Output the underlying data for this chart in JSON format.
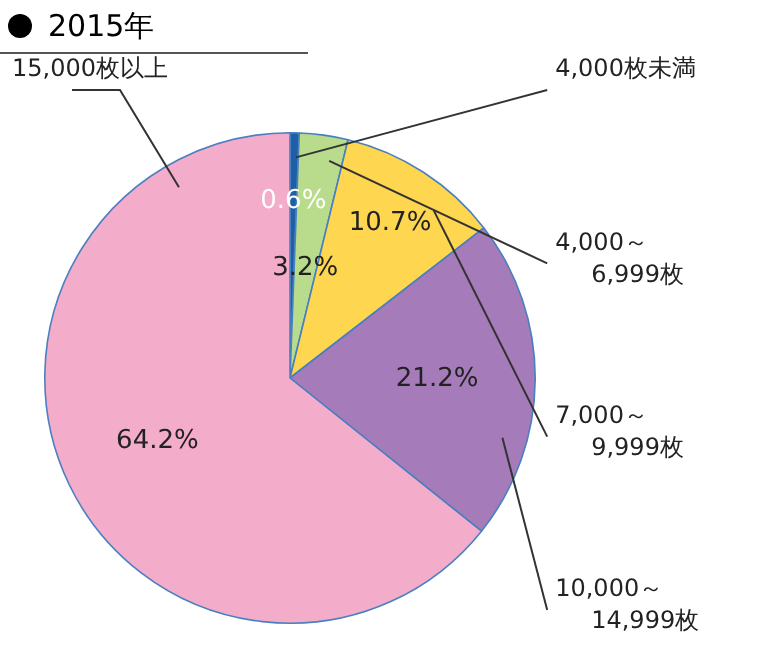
{
  "chart_data": {
    "type": "pie",
    "title": "2015年",
    "categories": [
      "4,000枚未満",
      "4,000～6,999枚",
      "7,000～9,999枚",
      "10,000～14,999枚",
      "15,000枚以上"
    ],
    "values": [
      0.6,
      3.2,
      10.7,
      21.2,
      64.2
    ],
    "colors": [
      "#1f5fa8",
      "#b8dc8c",
      "#ffd64f",
      "#a57bb9",
      "#f3acca"
    ],
    "value_labels": [
      "0.6%",
      "3.2%",
      "10.7%",
      "21.2%",
      "64.2%"
    ],
    "legend": false
  }
}
